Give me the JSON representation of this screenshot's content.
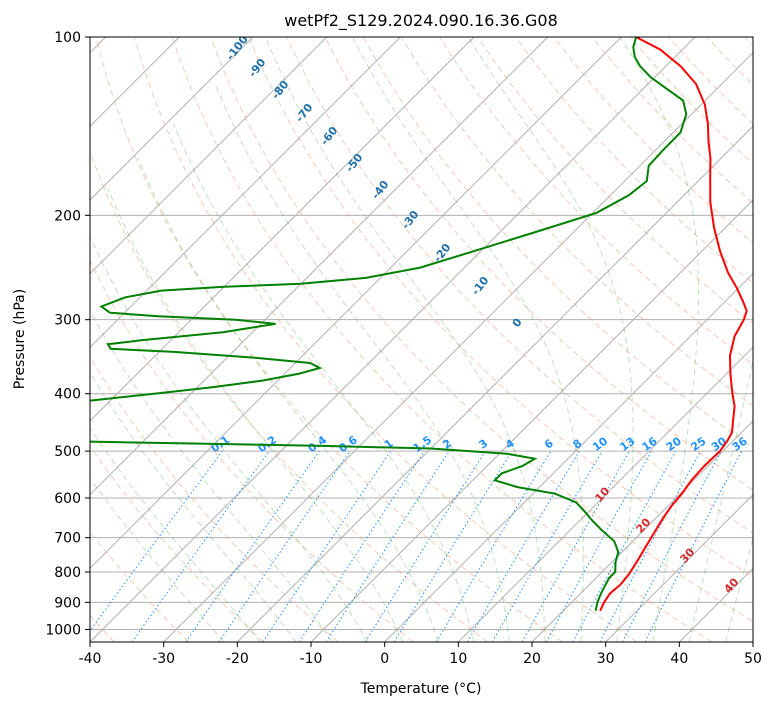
{
  "chart_data": {
    "type": "line",
    "title": "wetPf2_S129.2024.090.16.36.G08",
    "xlabel": "Temperature (°C)",
    "ylabel": "Pressure (hPa)",
    "xlim": [
      -40,
      50
    ],
    "ylim": [
      1050,
      100
    ],
    "y_scale": "log",
    "x_ticks": [
      "-40",
      "-30",
      "-20",
      "-10",
      "0",
      "10",
      "20",
      "30",
      "40",
      "50"
    ],
    "y_ticks": [
      "100",
      "200",
      "300",
      "400",
      "500",
      "600",
      "700",
      "800",
      "900",
      "1000"
    ],
    "skew": true,
    "grid": true,
    "series": [
      {
        "color": "#ff0000",
        "points": [
          [
            25.0,
            930
          ],
          [
            24.4,
            900
          ],
          [
            24.0,
            870
          ],
          [
            24.2,
            840
          ],
          [
            24.0,
            810
          ],
          [
            23.6,
            785
          ],
          [
            23.2,
            760
          ],
          [
            22.6,
            730
          ],
          [
            22.0,
            700
          ],
          [
            21.0,
            650
          ],
          [
            20.5,
            620
          ],
          [
            20.2,
            590
          ],
          [
            19.7,
            560
          ],
          [
            19.5,
            530
          ],
          [
            19.6,
            500
          ],
          [
            19.2,
            480
          ],
          [
            18.7,
            465
          ],
          [
            17.3,
            445
          ],
          [
            15.5,
            420
          ],
          [
            13.5,
            400
          ],
          [
            10.5,
            370
          ],
          [
            8.0,
            345
          ],
          [
            6.0,
            320
          ],
          [
            5.0,
            300
          ],
          [
            4.2,
            290
          ],
          [
            2.5,
            280
          ],
          [
            -0.3,
            265
          ],
          [
            -3.5,
            250
          ],
          [
            -7.5,
            230
          ],
          [
            -11.5,
            210
          ],
          [
            -15.5,
            190
          ],
          [
            -19.0,
            172
          ],
          [
            -21.5,
            160
          ],
          [
            -24.0,
            150
          ],
          [
            -26.5,
            140
          ],
          [
            -29.5,
            130
          ],
          [
            -33.5,
            120
          ],
          [
            -38.0,
            112
          ],
          [
            -43.0,
            105
          ],
          [
            -48.0,
            100
          ]
        ]
      },
      {
        "color": "#008000",
        "points": [
          [
            24.4,
            930
          ],
          [
            23.5,
            900
          ],
          [
            22.8,
            870
          ],
          [
            22.2,
            840
          ],
          [
            21.8,
            820
          ],
          [
            21.8,
            800
          ],
          [
            20.5,
            770
          ],
          [
            19.5,
            740
          ],
          [
            17.5,
            710
          ],
          [
            14.3,
            680
          ],
          [
            11.7,
            655
          ],
          [
            9.2,
            630
          ],
          [
            7.0,
            610
          ],
          [
            3.0,
            590
          ],
          [
            -3.0,
            575
          ],
          [
            -7.0,
            560
          ],
          [
            -7.0,
            545
          ],
          [
            -5.2,
            530
          ],
          [
            -4.5,
            515
          ],
          [
            -9.0,
            505
          ],
          [
            -20.0,
            495
          ],
          [
            -35.0,
            490
          ],
          [
            -55.0,
            485
          ],
          [
            -75.0,
            480
          ],
          [
            -80.0,
            470
          ],
          [
            -85.0,
            455
          ],
          [
            -87.0,
            440
          ],
          [
            -88.0,
            430
          ],
          [
            -84.0,
            425
          ],
          [
            -80.0,
            420
          ],
          [
            -72.0,
            410
          ],
          [
            -65.0,
            400
          ],
          [
            -58.0,
            390
          ],
          [
            -52.0,
            380
          ],
          [
            -48.0,
            370
          ],
          [
            -46.0,
            362
          ],
          [
            -48.0,
            355
          ],
          [
            -56.0,
            348
          ],
          [
            -68.0,
            340
          ],
          [
            -77.0,
            336
          ],
          [
            -78.0,
            330
          ],
          [
            -74.0,
            325
          ],
          [
            -64.0,
            315
          ],
          [
            -58.0,
            305
          ],
          [
            -64.0,
            300
          ],
          [
            -75.0,
            296
          ],
          [
            -82.0,
            292
          ],
          [
            -84.0,
            285
          ],
          [
            -82.0,
            275
          ],
          [
            -78.0,
            268
          ],
          [
            -70.0,
            264
          ],
          [
            -60.0,
            261
          ],
          [
            -52.0,
            255
          ],
          [
            -46.0,
            245
          ],
          [
            -41.0,
            230
          ],
          [
            -35.0,
            213
          ],
          [
            -29.5,
            198
          ],
          [
            -27.5,
            185
          ],
          [
            -27.0,
            175
          ],
          [
            -28.8,
            165
          ],
          [
            -29.0,
            155
          ],
          [
            -29.0,
            145
          ],
          [
            -30.7,
            135
          ],
          [
            -33.0,
            128
          ],
          [
            -37.0,
            122
          ],
          [
            -40.5,
            117
          ],
          [
            -43.5,
            112
          ],
          [
            -45.5,
            108
          ],
          [
            -47.0,
            104
          ],
          [
            -48.0,
            100
          ]
        ]
      }
    ],
    "dry_adiabat_labels": [
      "-100",
      "-90",
      "-80",
      "-70",
      "-60",
      "-50",
      "-40",
      "-30",
      "-20",
      "-10",
      "0"
    ],
    "moist_adiabat_labels": [
      "10",
      "20",
      "30",
      "40"
    ],
    "mixing_ratio_labels": [
      "0.1",
      "0.2",
      "0.4",
      "0.6",
      "1",
      "1.5",
      "2",
      "3",
      "4",
      "6",
      "8",
      "10",
      "13",
      "16",
      "20",
      "25",
      "30",
      "36"
    ]
  }
}
